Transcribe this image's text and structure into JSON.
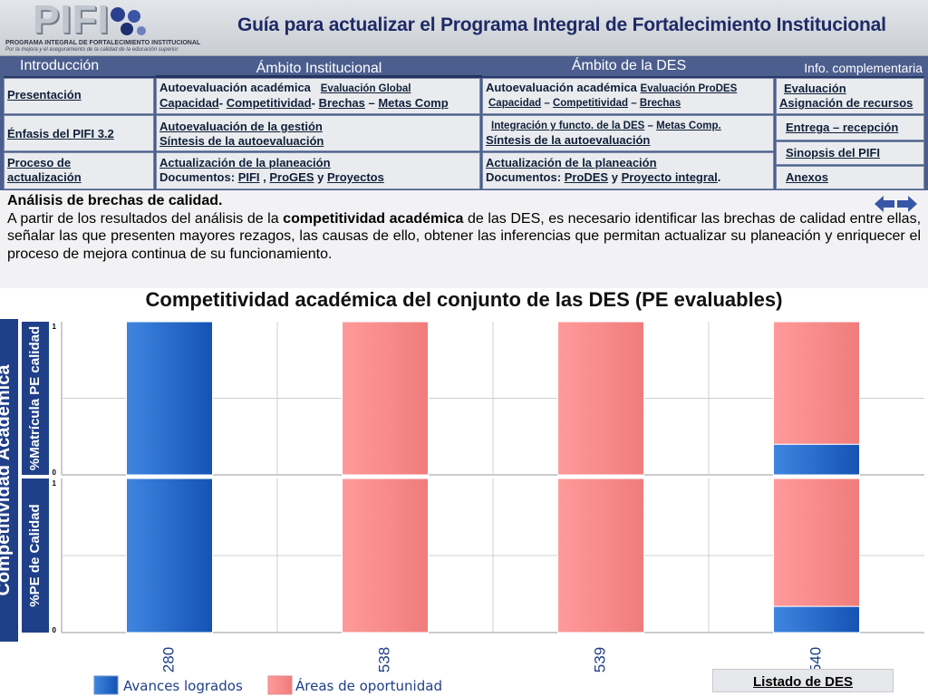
{
  "header": {
    "logo_word": "PIFI",
    "logo_line1": "PROGRAMA INTEGRAL DE FORTALECIMIENTO INSTITUCIONAL",
    "logo_line2": "Por la mejora y el aseguramiento de la calidad de la educación superior",
    "title": "Guía para actualizar el Programa Integral de Fortalecimiento Institucional"
  },
  "nav": {
    "col_heads": [
      "Introducción",
      "Ámbito Institucional",
      "Ámbito de la DES",
      "Info. complementaria"
    ],
    "intro": [
      "Presentación",
      "Énfasis del PIFI 3.2",
      "Proceso de actualización"
    ],
    "institucional": {
      "r1_a": "Autoevaluación académica",
      "r1_b": "Evaluación Global",
      "r1_c1": "Capacidad",
      "r1_c2": "Competitividad",
      "r1_c3": "Brechas",
      "r1_c4": "Metas Comp",
      "r2_a": "Autoevaluación de la gestión",
      "r2_b": "Síntesis de la autoevaluación",
      "r3_a": "Actualización de la planeación",
      "r3_b": "Documentos:",
      "r3_c1": "PIFI",
      "r3_c2": "ProGES",
      "r3_c3": "Proyectos",
      "r3_y": "y"
    },
    "des": {
      "r1_a": "Autoevaluación académica",
      "r1_b": "Evaluación ProDES",
      "r1_c1": "Capacidad",
      "r1_c2": "Competitividad",
      "r1_c3": "Brechas",
      "r2_a": "Integración y functo. de la DES",
      "r2_a2": "Metas Comp.",
      "r2_b": "Síntesis de la autoevaluación",
      "r3_a": "Actualización de la planeación",
      "r3_b": "Documentos:",
      "r3_c1": "ProDES",
      "r3_c2": "Proyecto integral",
      "r3_y": "y"
    },
    "info": [
      "Evaluación",
      "Asignación de recursos",
      "Entrega – recepción",
      "Sinopsis del PIFI",
      "Anexos"
    ]
  },
  "description": {
    "title": "Análisis de brechas de calidad.",
    "text_1": "A partir de los resultados del análisis de la ",
    "text_bold": "competitividad académica",
    "text_2": " de las DES, es necesario identificar las brechas de calidad entre ellas, señalar las que presenten mayores rezagos, las causas de ello, obtener las inferencias que permitan actualizar su planeación y enriquecer el proceso de mejora continua de su funcionamiento."
  },
  "chart_title": "Competitividad académica del conjunto de las DES (PE evaluables)",
  "chart_data": {
    "type": "bar",
    "stacked": true,
    "title": "Competitividad académica del conjunto de las DES (PE evaluables)",
    "side_label": "Competitividad Académica",
    "categories": [
      "280",
      "538",
      "539",
      "540"
    ],
    "ylim": [
      0,
      1
    ],
    "ytick_labels": [
      "0",
      "1"
    ],
    "grid": true,
    "legend_position": "bottom-left",
    "colors": {
      "avances": "#1f66c8",
      "oportunidad": "#f59a9a"
    },
    "panels": [
      {
        "ylabel": "%Matrícula PE calidad",
        "series": [
          {
            "name": "Avances logrados",
            "values": [
              1.0,
              0.0,
              0.0,
              0.2
            ]
          },
          {
            "name": "Áreas de oportunidad",
            "values": [
              0.0,
              1.0,
              1.0,
              0.8
            ]
          }
        ]
      },
      {
        "ylabel": "%PE de Calidad",
        "series": [
          {
            "name": "Avances logrados",
            "values": [
              1.0,
              0.0,
              0.0,
              0.17
            ]
          },
          {
            "name": "Áreas de oportunidad",
            "values": [
              0.0,
              1.0,
              1.0,
              0.83
            ]
          }
        ]
      }
    ],
    "legend": [
      "Avances logrados",
      "Áreas de oportunidad"
    ]
  },
  "listado_link": "Listado de DES"
}
